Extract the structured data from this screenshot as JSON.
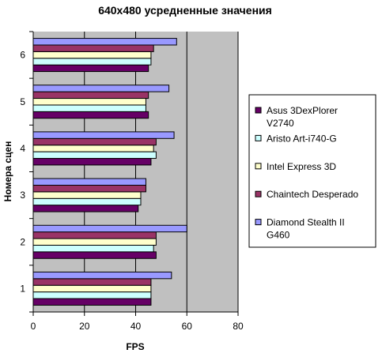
{
  "chart_data": {
    "type": "bar",
    "orientation": "horizontal",
    "title": "640x480 усредненные значения",
    "xlabel": "FPS",
    "ylabel": "Номера сцен",
    "xlim": [
      0,
      80
    ],
    "xticks": [
      0,
      20,
      40,
      60,
      80
    ],
    "categories": [
      "1",
      "2",
      "3",
      "4",
      "5",
      "6"
    ],
    "grid": "vertical major gridlines",
    "legend_position": "right",
    "series": [
      {
        "name": "Asus 3DexPlorer V2740",
        "color": "#660066",
        "values": [
          46,
          48,
          41,
          46,
          45,
          45
        ]
      },
      {
        "name": "Aristo Art-i740-G",
        "color": "#ccffff",
        "values": [
          46,
          47,
          42,
          48,
          44,
          46
        ]
      },
      {
        "name": "Intel Express 3D",
        "color": "#ffffcc",
        "values": [
          46,
          48,
          42,
          47,
          44,
          46
        ]
      },
      {
        "name": "Chaintech Desperado",
        "color": "#993366",
        "values": [
          46,
          48,
          44,
          48,
          45,
          47
        ]
      },
      {
        "name": "Diamond Stealth II G460",
        "color": "#9999ff",
        "values": [
          54,
          60,
          44,
          55,
          53,
          56
        ]
      }
    ]
  }
}
